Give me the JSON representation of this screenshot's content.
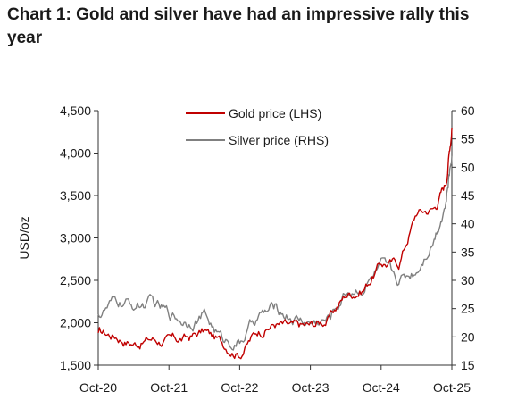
{
  "title": "Chart 1: Gold and silver have had an impressive rally this year",
  "chart_data": {
    "type": "line",
    "title": "Chart 1: Gold and silver have had an impressive rally this year",
    "ylabel": "USD/oz",
    "y_left": {
      "range": [
        1500,
        4500
      ],
      "ticks": [
        "1,500",
        "2,000",
        "2,500",
        "3,000",
        "3,500",
        "4,000",
        "4,500"
      ]
    },
    "y_right": {
      "range": [
        15,
        60
      ],
      "ticks": [
        "15",
        "20",
        "25",
        "30",
        "35",
        "40",
        "45",
        "50",
        "55",
        "60"
      ]
    },
    "x_ticks": [
      "Oct-20",
      "Oct-21",
      "Oct-22",
      "Oct-23",
      "Oct-24",
      "Oct-25"
    ],
    "x_range": [
      "2020-10",
      "2025-10"
    ],
    "grid": false,
    "legend_placement": "top-center",
    "x": [
      "2020-10",
      "2021-01",
      "2021-04",
      "2021-07",
      "2021-10",
      "2022-01",
      "2022-04",
      "2022-07",
      "2022-10",
      "2023-01",
      "2023-04",
      "2023-07",
      "2023-10",
      "2024-01",
      "2024-04",
      "2024-07",
      "2024-10",
      "2025-01",
      "2025-04",
      "2025-07",
      "2025-09",
      "2025-10"
    ],
    "series": [
      {
        "name": "Gold price (LHS)",
        "axis": "left",
        "color": "#c00000",
        "values": [
          1880,
          1850,
          1760,
          1810,
          1780,
          1810,
          1900,
          1760,
          1650,
          1900,
          1990,
          1940,
          1960,
          2040,
          2330,
          2400,
          2700,
          2700,
          3300,
          3350,
          3650,
          4300
        ]
      },
      {
        "name": "Silver price (RHS)",
        "axis": "right",
        "color": "#808080",
        "values": [
          24,
          26,
          25.5,
          26,
          24,
          23,
          24,
          19.5,
          19,
          23.5,
          25,
          23.5,
          22.5,
          23,
          28,
          29,
          32,
          30,
          32,
          38,
          44,
          52
        ]
      }
    ]
  }
}
